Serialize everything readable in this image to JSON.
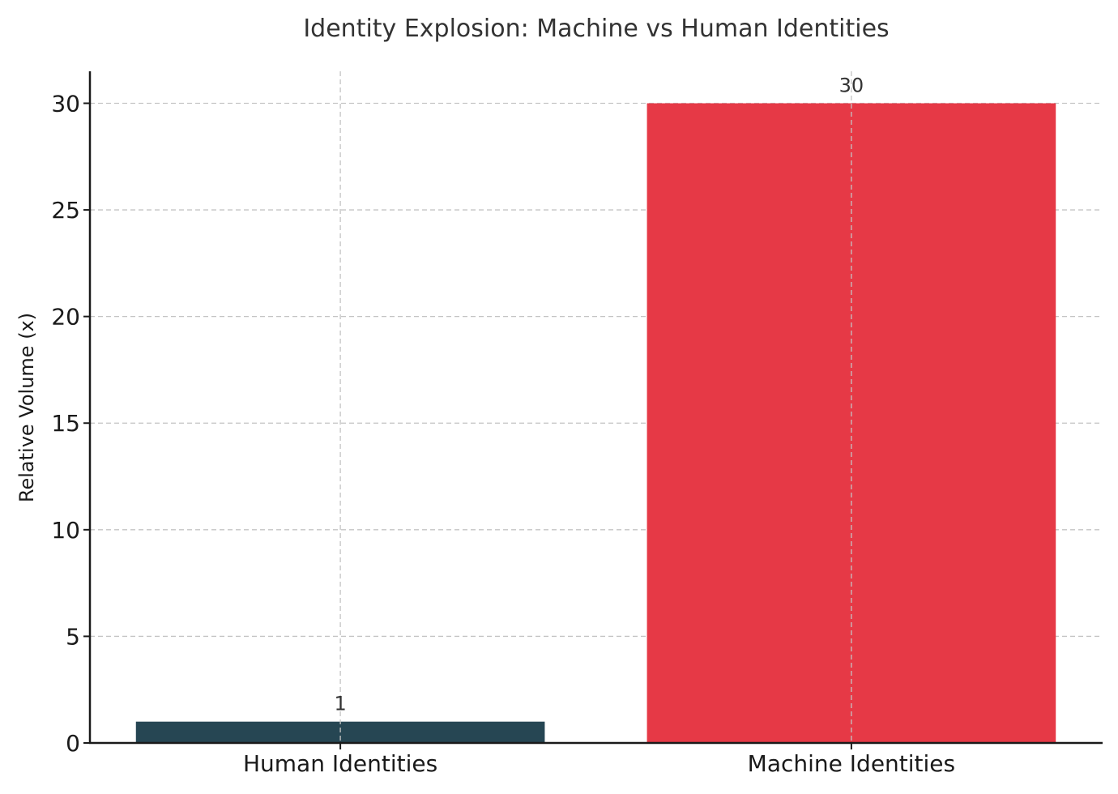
{
  "chart_data": {
    "type": "bar",
    "title": "Identity Explosion: Machine vs Human Identities",
    "xlabel": "",
    "ylabel": "Relative Volume (x)",
    "categories": [
      "Human Identities",
      "Machine Identities"
    ],
    "values": [
      1,
      30
    ],
    "data_labels": [
      "1",
      "30"
    ],
    "colors": [
      "#264653",
      "#e63946"
    ],
    "ylim": [
      0,
      31.5
    ],
    "yticks": [
      0,
      5,
      10,
      15,
      20,
      25,
      30
    ],
    "ytick_labels": [
      "0",
      "5",
      "10",
      "15",
      "20",
      "25",
      "30"
    ],
    "grid": true,
    "legend": null
  }
}
